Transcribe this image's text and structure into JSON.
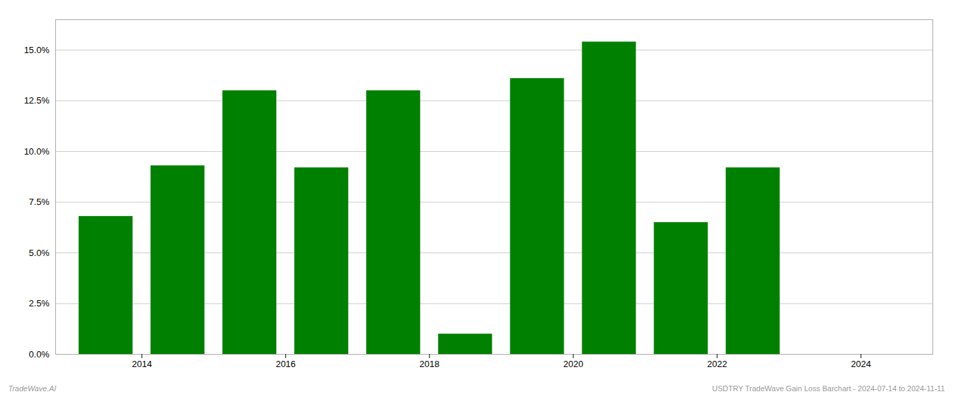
{
  "chart_data": {
    "type": "bar",
    "x": [
      2013,
      2014,
      2015,
      2016,
      2017,
      2018,
      2019,
      2020,
      2021,
      2022
    ],
    "values": [
      0.068,
      0.093,
      0.13,
      0.092,
      0.13,
      0.01,
      0.136,
      0.154,
      0.065,
      0.092
    ],
    "color": "#008000",
    "xlim": [
      2012.8,
      2025.0
    ],
    "xticks": [
      2014,
      2016,
      2018,
      2020,
      2022,
      2024
    ],
    "ylim": [
      0,
      0.165
    ],
    "yticks": [
      {
        "value": 0.0,
        "label": "0.0%"
      },
      {
        "value": 0.025,
        "label": "2.5%"
      },
      {
        "value": 0.05,
        "label": "5.0%"
      },
      {
        "value": 0.075,
        "label": "7.5%"
      },
      {
        "value": 0.1,
        "label": "10.0%"
      },
      {
        "value": 0.125,
        "label": "12.5%"
      },
      {
        "value": 0.15,
        "label": "15.0%"
      }
    ],
    "grid": true,
    "annotations": [
      "TradeWave.AI",
      "USDTRY TradeWave Gain Loss Barchart - 2024-07-14 to 2024-11-11"
    ]
  }
}
